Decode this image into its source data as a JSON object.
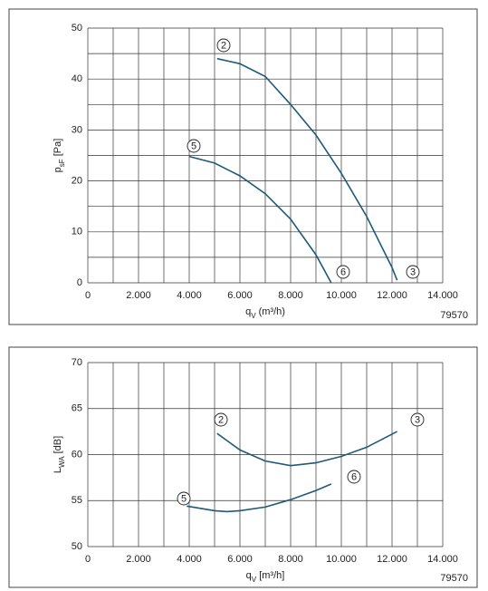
{
  "chart_data": [
    {
      "type": "line",
      "y_label": {
        "main": "p",
        "sub": "sF",
        "unit": " [Pa]"
      },
      "x_label": {
        "main": "q",
        "sub": "V",
        "unit": " (m³/h)"
      },
      "code": "79570",
      "xlim": [
        0,
        14000
      ],
      "xticks": [
        0,
        {
          "value": 2000,
          "label": "2.000"
        },
        {
          "value": 4000,
          "label": "4.000"
        },
        {
          "value": 6000,
          "label": "6.000"
        },
        {
          "value": 8000,
          "label": "8.000"
        },
        {
          "value": 10000,
          "label": "10.000"
        },
        {
          "value": 12000,
          "label": "12.000"
        },
        {
          "value": 14000,
          "label": "14.000"
        }
      ],
      "ylim": [
        0,
        50
      ],
      "yticks": [
        0,
        10,
        20,
        30,
        40,
        50
      ],
      "grid": true,
      "minor_grid": true,
      "series": [
        {
          "color": "#1f5a78",
          "x": [
            5100,
            6000,
            7000,
            8000,
            9000,
            10000,
            11000,
            12000,
            12200
          ],
          "values": [
            44,
            43,
            40.5,
            35,
            29,
            21.5,
            13,
            3,
            0.5
          ]
        },
        {
          "color": "#1f5a78",
          "x": [
            4000,
            5000,
            6000,
            7000,
            8000,
            9000,
            9600
          ],
          "values": [
            24.8,
            23.5,
            21,
            17.5,
            12.5,
            5.5,
            0
          ]
        }
      ],
      "annotations": [
        "2",
        "5",
        "6",
        "3"
      ]
    },
    {
      "type": "line",
      "y_label": {
        "main": "L",
        "sub": "WA",
        "unit": " [dB]"
      },
      "x_label": {
        "main": "q",
        "sub": "V",
        "unit": " [m³/h]"
      },
      "code": "79570",
      "xlim": [
        0,
        14000
      ],
      "xticks": [
        0,
        {
          "value": 2000,
          "label": "2.000"
        },
        {
          "value": 4000,
          "label": "4.000"
        },
        {
          "value": 6000,
          "label": "6.000"
        },
        {
          "value": 8000,
          "label": "8.000"
        },
        {
          "value": 10000,
          "label": "10.000"
        },
        {
          "value": 12000,
          "label": "12.000"
        },
        {
          "value": 14000,
          "label": "14.000"
        }
      ],
      "ylim": [
        50,
        70
      ],
      "yticks": [
        50,
        55,
        60,
        65,
        70
      ],
      "grid": true,
      "minor_grid": false,
      "series": [
        {
          "color": "#1f5a78",
          "x": [
            5100,
            6000,
            7000,
            8000,
            9000,
            10000,
            11000,
            12200
          ],
          "values": [
            62.3,
            60.5,
            59.3,
            58.8,
            59.1,
            59.8,
            60.8,
            62.5
          ]
        },
        {
          "color": "#1f5a78",
          "x": [
            3900,
            5000,
            5500,
            6000,
            7000,
            8000,
            9000,
            9600
          ],
          "values": [
            54.4,
            53.9,
            53.8,
            53.9,
            54.3,
            55.1,
            56.1,
            56.8
          ]
        }
      ],
      "annotations": [
        "2",
        "3",
        "5",
        "6"
      ]
    }
  ]
}
